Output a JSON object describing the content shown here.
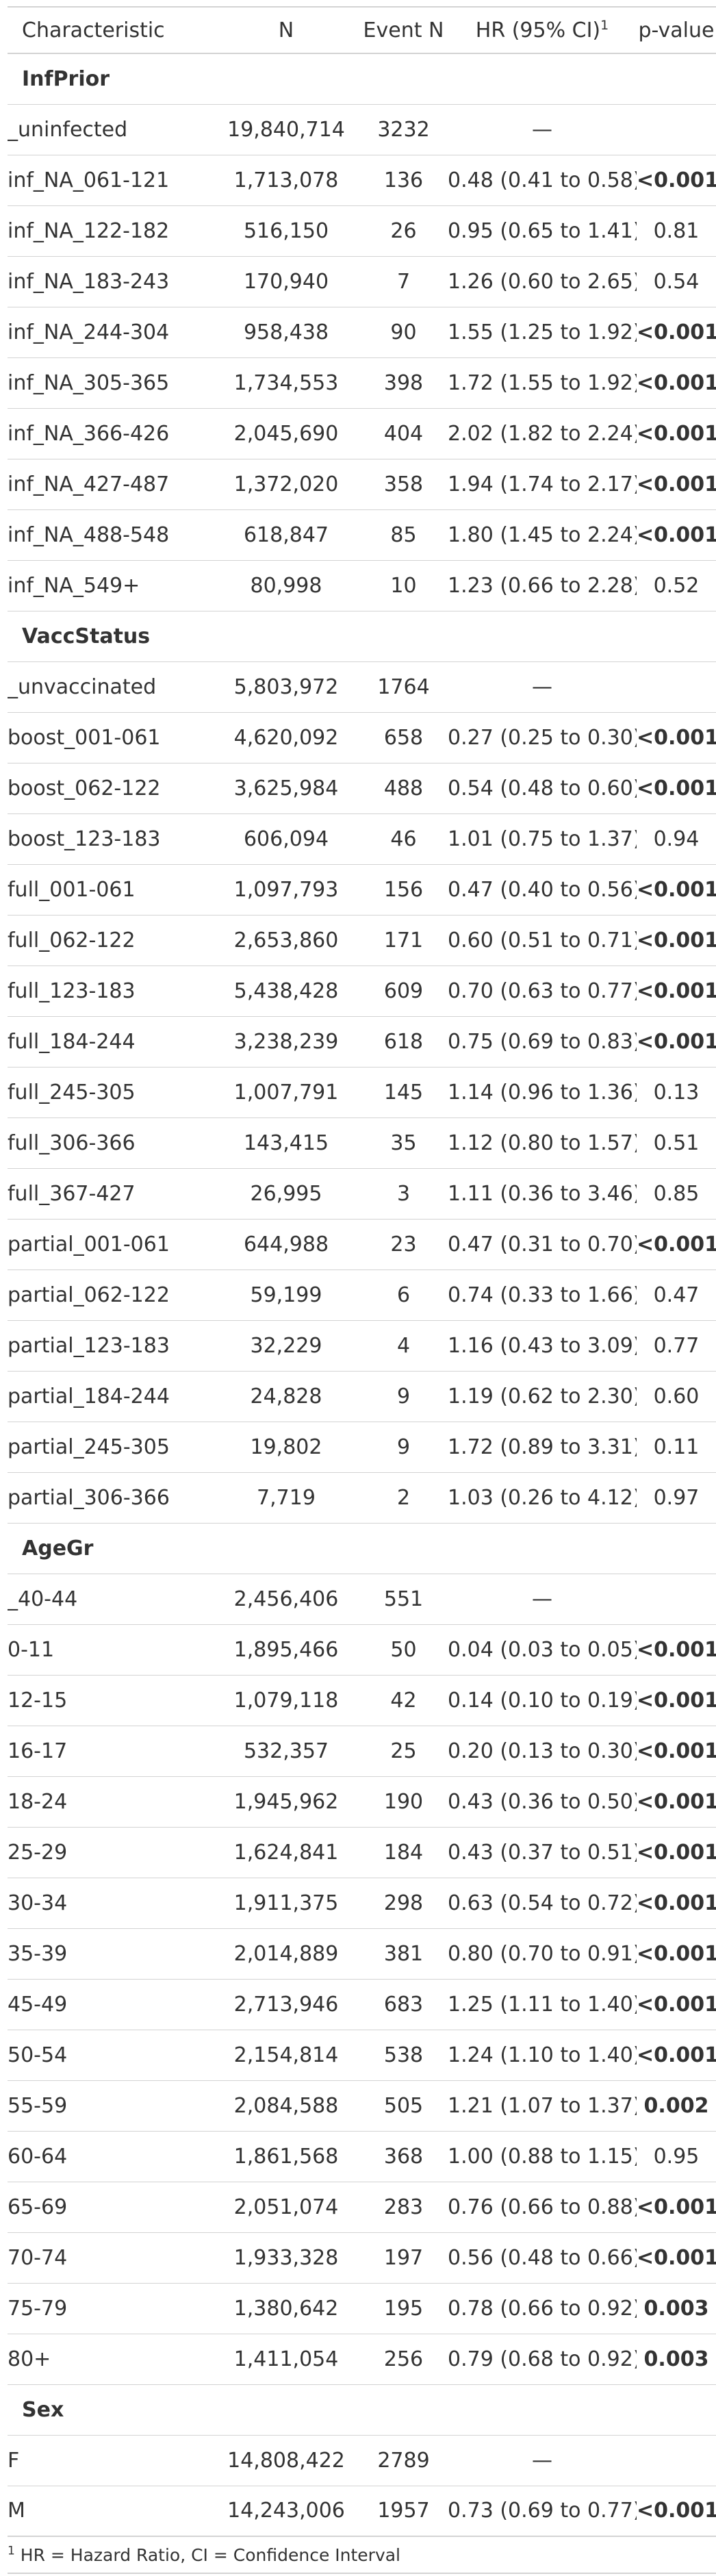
{
  "header": {
    "characteristic": "Characteristic",
    "n": "N",
    "event_n": "Event N",
    "hr": "HR (95% CI)",
    "hr_footnote_mark": "1",
    "p_value": "p-value"
  },
  "groups": [
    {
      "name": "InfPrior",
      "rows": [
        {
          "label": "_uninfected",
          "n": "19,840,714",
          "event_n": "3232",
          "hr": "—",
          "p": "",
          "sig": false
        },
        {
          "label": "inf_NA_061-121",
          "n": "1,713,078",
          "event_n": "136",
          "hr": "0.48 (0.41 to 0.58)",
          "p": "<0.001",
          "sig": true
        },
        {
          "label": "inf_NA_122-182",
          "n": "516,150",
          "event_n": "26",
          "hr": "0.95 (0.65 to 1.41)",
          "p": "0.81",
          "sig": false
        },
        {
          "label": "inf_NA_183-243",
          "n": "170,940",
          "event_n": "7",
          "hr": "1.26 (0.60 to 2.65)",
          "p": "0.54",
          "sig": false
        },
        {
          "label": "inf_NA_244-304",
          "n": "958,438",
          "event_n": "90",
          "hr": "1.55 (1.25 to 1.92)",
          "p": "<0.001",
          "sig": true
        },
        {
          "label": "inf_NA_305-365",
          "n": "1,734,553",
          "event_n": "398",
          "hr": "1.72 (1.55 to 1.92)",
          "p": "<0.001",
          "sig": true
        },
        {
          "label": "inf_NA_366-426",
          "n": "2,045,690",
          "event_n": "404",
          "hr": "2.02 (1.82 to 2.24)",
          "p": "<0.001",
          "sig": true
        },
        {
          "label": "inf_NA_427-487",
          "n": "1,372,020",
          "event_n": "358",
          "hr": "1.94 (1.74 to 2.17)",
          "p": "<0.001",
          "sig": true
        },
        {
          "label": "inf_NA_488-548",
          "n": "618,847",
          "event_n": "85",
          "hr": "1.80 (1.45 to 2.24)",
          "p": "<0.001",
          "sig": true
        },
        {
          "label": "inf_NA_549+",
          "n": "80,998",
          "event_n": "10",
          "hr": "1.23 (0.66 to 2.28)",
          "p": "0.52",
          "sig": false
        }
      ]
    },
    {
      "name": "VaccStatus",
      "rows": [
        {
          "label": "_unvaccinated",
          "n": "5,803,972",
          "event_n": "1764",
          "hr": "—",
          "p": "",
          "sig": false
        },
        {
          "label": "boost_001-061",
          "n": "4,620,092",
          "event_n": "658",
          "hr": "0.27 (0.25 to 0.30)",
          "p": "<0.001",
          "sig": true
        },
        {
          "label": "boost_062-122",
          "n": "3,625,984",
          "event_n": "488",
          "hr": "0.54 (0.48 to 0.60)",
          "p": "<0.001",
          "sig": true
        },
        {
          "label": "boost_123-183",
          "n": "606,094",
          "event_n": "46",
          "hr": "1.01 (0.75 to 1.37)",
          "p": "0.94",
          "sig": false
        },
        {
          "label": "full_001-061",
          "n": "1,097,793",
          "event_n": "156",
          "hr": "0.47 (0.40 to 0.56)",
          "p": "<0.001",
          "sig": true
        },
        {
          "label": "full_062-122",
          "n": "2,653,860",
          "event_n": "171",
          "hr": "0.60 (0.51 to 0.71)",
          "p": "<0.001",
          "sig": true
        },
        {
          "label": "full_123-183",
          "n": "5,438,428",
          "event_n": "609",
          "hr": "0.70 (0.63 to 0.77)",
          "p": "<0.001",
          "sig": true
        },
        {
          "label": "full_184-244",
          "n": "3,238,239",
          "event_n": "618",
          "hr": "0.75 (0.69 to 0.83)",
          "p": "<0.001",
          "sig": true
        },
        {
          "label": "full_245-305",
          "n": "1,007,791",
          "event_n": "145",
          "hr": "1.14 (0.96 to 1.36)",
          "p": "0.13",
          "sig": false
        },
        {
          "label": "full_306-366",
          "n": "143,415",
          "event_n": "35",
          "hr": "1.12 (0.80 to 1.57)",
          "p": "0.51",
          "sig": false
        },
        {
          "label": "full_367-427",
          "n": "26,995",
          "event_n": "3",
          "hr": "1.11 (0.36 to 3.46)",
          "p": "0.85",
          "sig": false
        },
        {
          "label": "partial_001-061",
          "n": "644,988",
          "event_n": "23",
          "hr": "0.47 (0.31 to 0.70)",
          "p": "<0.001",
          "sig": true
        },
        {
          "label": "partial_062-122",
          "n": "59,199",
          "event_n": "6",
          "hr": "0.74 (0.33 to 1.66)",
          "p": "0.47",
          "sig": false
        },
        {
          "label": "partial_123-183",
          "n": "32,229",
          "event_n": "4",
          "hr": "1.16 (0.43 to 3.09)",
          "p": "0.77",
          "sig": false
        },
        {
          "label": "partial_184-244",
          "n": "24,828",
          "event_n": "9",
          "hr": "1.19 (0.62 to 2.30)",
          "p": "0.60",
          "sig": false
        },
        {
          "label": "partial_245-305",
          "n": "19,802",
          "event_n": "9",
          "hr": "1.72 (0.89 to 3.31)",
          "p": "0.11",
          "sig": false
        },
        {
          "label": "partial_306-366",
          "n": "7,719",
          "event_n": "2",
          "hr": "1.03 (0.26 to 4.12)",
          "p": "0.97",
          "sig": false
        }
      ]
    },
    {
      "name": "AgeGr",
      "rows": [
        {
          "label": "_40-44",
          "n": "2,456,406",
          "event_n": "551",
          "hr": "—",
          "p": "",
          "sig": false
        },
        {
          "label": "0-11",
          "n": "1,895,466",
          "event_n": "50",
          "hr": "0.04 (0.03 to 0.05)",
          "p": "<0.001",
          "sig": true
        },
        {
          "label": "12-15",
          "n": "1,079,118",
          "event_n": "42",
          "hr": "0.14 (0.10 to 0.19)",
          "p": "<0.001",
          "sig": true
        },
        {
          "label": "16-17",
          "n": "532,357",
          "event_n": "25",
          "hr": "0.20 (0.13 to 0.30)",
          "p": "<0.001",
          "sig": true
        },
        {
          "label": "18-24",
          "n": "1,945,962",
          "event_n": "190",
          "hr": "0.43 (0.36 to 0.50)",
          "p": "<0.001",
          "sig": true
        },
        {
          "label": "25-29",
          "n": "1,624,841",
          "event_n": "184",
          "hr": "0.43 (0.37 to 0.51)",
          "p": "<0.001",
          "sig": true
        },
        {
          "label": "30-34",
          "n": "1,911,375",
          "event_n": "298",
          "hr": "0.63 (0.54 to 0.72)",
          "p": "<0.001",
          "sig": true
        },
        {
          "label": "35-39",
          "n": "2,014,889",
          "event_n": "381",
          "hr": "0.80 (0.70 to 0.91)",
          "p": "<0.001",
          "sig": true
        },
        {
          "label": "45-49",
          "n": "2,713,946",
          "event_n": "683",
          "hr": "1.25 (1.11 to 1.40)",
          "p": "<0.001",
          "sig": true
        },
        {
          "label": "50-54",
          "n": "2,154,814",
          "event_n": "538",
          "hr": "1.24 (1.10 to 1.40)",
          "p": "<0.001",
          "sig": true
        },
        {
          "label": "55-59",
          "n": "2,084,588",
          "event_n": "505",
          "hr": "1.21 (1.07 to 1.37)",
          "p": "0.002",
          "sig": true
        },
        {
          "label": "60-64",
          "n": "1,861,568",
          "event_n": "368",
          "hr": "1.00 (0.88 to 1.15)",
          "p": "0.95",
          "sig": false
        },
        {
          "label": "65-69",
          "n": "2,051,074",
          "event_n": "283",
          "hr": "0.76 (0.66 to 0.88)",
          "p": "<0.001",
          "sig": true
        },
        {
          "label": "70-74",
          "n": "1,933,328",
          "event_n": "197",
          "hr": "0.56 (0.48 to 0.66)",
          "p": "<0.001",
          "sig": true
        },
        {
          "label": "75-79",
          "n": "1,380,642",
          "event_n": "195",
          "hr": "0.78 (0.66 to 0.92)",
          "p": "0.003",
          "sig": true
        },
        {
          "label": "80+",
          "n": "1,411,054",
          "event_n": "256",
          "hr": "0.79 (0.68 to 0.92)",
          "p": "0.003",
          "sig": true
        }
      ]
    },
    {
      "name": "Sex",
      "rows": [
        {
          "label": "F",
          "n": "14,808,422",
          "event_n": "2789",
          "hr": "—",
          "p": "",
          "sig": false
        },
        {
          "label": "M",
          "n": "14,243,006",
          "event_n": "1957",
          "hr": "0.73 (0.69 to 0.77)",
          "p": "<0.001",
          "sig": true
        }
      ]
    }
  ],
  "footnote": {
    "mark": "1",
    "text": "HR = Hazard Ratio, CI = Confidence Interval"
  }
}
